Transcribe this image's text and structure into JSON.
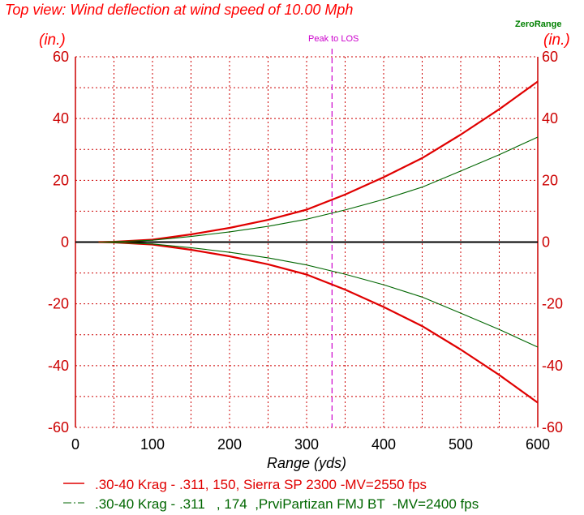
{
  "chart_data": {
    "type": "line",
    "title": "Top view: Wind deflection at wind speed of 10.00 Mph",
    "xlabel": "Range (yds)",
    "ylabel_left": "(in.)",
    "ylabel_right": "(in.)",
    "xlim": [
      0,
      600
    ],
    "ylim": [
      -60,
      60
    ],
    "x_ticks": [
      0,
      100,
      200,
      300,
      400,
      500,
      600
    ],
    "y_ticks": [
      -60,
      -40,
      -20,
      0,
      20,
      40,
      60
    ],
    "grid": true,
    "annotations": {
      "peak_label": "Peak to LOS",
      "peak_x": 333,
      "zero_label": "ZeroRange"
    },
    "colors": {
      "series1": "#e00000",
      "series2": "#006600",
      "peak": "#cc00cc",
      "title": "#ff0000",
      "grid": "#cc0000",
      "zero_label": "#008000"
    },
    "x": [
      0,
      50,
      100,
      150,
      200,
      250,
      300,
      350,
      400,
      450,
      500,
      550,
      600
    ],
    "series": [
      {
        "name": ".30-40 Krag - .311, 150, Sierra SP 2300 -MV=2550 fps",
        "legend_label": ".30-40 Krag - .311, 150, Sierra SP 2300 -MV=2550 fps",
        "values_upper": [
          0,
          0.1,
          0.8,
          2.5,
          4.6,
          7.2,
          10.5,
          15.4,
          21.0,
          27.2,
          34.8,
          43.0,
          52.0
        ],
        "values_lower": [
          0,
          -0.1,
          -0.8,
          -2.5,
          -4.6,
          -7.2,
          -10.5,
          -15.4,
          -21.0,
          -27.2,
          -34.8,
          -43.0,
          -52.0
        ]
      },
      {
        "name": ".30-40 Krag - .311 , 174 ,PrviPartizan FMJ BT -MV=2400 fps",
        "legend_label": ".30-40 Krag - .311   , 174  ,PrviPartizan FMJ BT  -MV=2400 fps",
        "values_upper": [
          0,
          0.1,
          0.6,
          1.8,
          3.3,
          5.1,
          7.4,
          10.4,
          13.8,
          17.8,
          23.0,
          28.3,
          34.0
        ],
        "values_lower": [
          0,
          -0.1,
          -0.6,
          -1.8,
          -3.3,
          -5.1,
          -7.4,
          -10.4,
          -13.8,
          -17.8,
          -23.0,
          -28.3,
          -34.0
        ]
      }
    ]
  }
}
